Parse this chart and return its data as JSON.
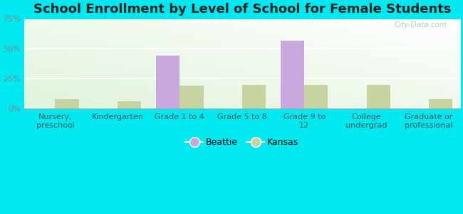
{
  "title": "School Enrollment by Level of School for Female Students",
  "categories": [
    "Nursery,\npreschool",
    "Kindergarten",
    "Grade 1 to 4",
    "Grade 5 to 8",
    "Grade 9 to\n12",
    "College\nundergrad",
    "Graduate or\nprofessional"
  ],
  "beattie": [
    0,
    0,
    44,
    0,
    57,
    0,
    0
  ],
  "kansas": [
    8,
    6,
    19,
    20,
    20,
    20,
    8
  ],
  "beattie_color": "#c9a8e0",
  "kansas_color": "#c8d4a0",
  "ylim": [
    0,
    75
  ],
  "yticks": [
    0,
    25,
    50,
    75
  ],
  "ytick_labels": [
    "0%",
    "25%",
    "50%",
    "75%"
  ],
  "bar_width": 0.38,
  "background_color": "#00e8f0",
  "title_fontsize": 13,
  "tick_fontsize": 8,
  "legend_fontsize": 9,
  "watermark_text": "City-Data.com"
}
